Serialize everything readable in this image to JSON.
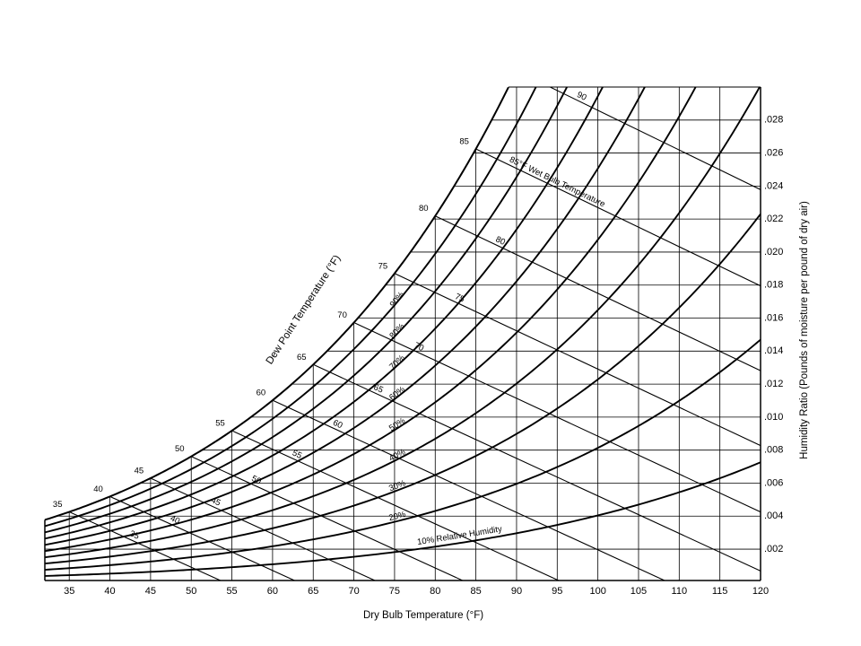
{
  "chart_data": {
    "type": "line",
    "title": "",
    "xlabel": "Dry Bulb Temperature (°F)",
    "ylabel": "Humidity Ratio (Pounds of moisture per pound of dry air)",
    "dew_point_label": "Dew Point Temperature (°F)",
    "wet_bulb_label": "85°F Wet Bulb Temperature",
    "rh_label": "10% Relative Humidity",
    "xlim": [
      32,
      120
    ],
    "ylim": [
      0,
      0.03
    ],
    "x_ticks": [
      35,
      40,
      45,
      50,
      55,
      60,
      65,
      70,
      75,
      80,
      85,
      90,
      95,
      100,
      105,
      110,
      115,
      120
    ],
    "x_tick_labels": [
      "35",
      "40",
      "45",
      "50",
      "55",
      "60",
      "65",
      "70",
      "75",
      "80",
      "85",
      "90",
      "95",
      "100",
      "105",
      "110",
      "115",
      "120"
    ],
    "y_ticks": [
      0.002,
      0.004,
      0.006,
      0.008,
      0.01,
      0.012,
      0.014,
      0.016,
      0.018,
      0.02,
      0.022,
      0.024,
      0.026,
      0.028
    ],
    "y_tick_labels": [
      ".002",
      ".004",
      ".006",
      ".008",
      ".010",
      ".012",
      ".014",
      ".016",
      ".018",
      ".020",
      ".022",
      ".024",
      ".026",
      ".028"
    ],
    "grid": true,
    "saturation_labels": [
      "35",
      "40",
      "45",
      "50",
      "55",
      "60",
      "65",
      "70",
      "75",
      "80",
      "85"
    ],
    "saturation_temps": [
      35,
      40,
      45,
      50,
      55,
      60,
      65,
      70,
      75,
      80,
      85
    ],
    "relative_humidity": {
      "levels": [
        10,
        20,
        30,
        40,
        50,
        60,
        70,
        80,
        90
      ],
      "labels": [
        "10%",
        "20%",
        "30%",
        "40%",
        "50%",
        "60%",
        "70%",
        "80%",
        "90%"
      ]
    },
    "wet_bulb": {
      "temps": [
        35,
        40,
        45,
        50,
        55,
        60,
        65,
        70,
        75,
        80,
        85,
        90
      ],
      "labels": [
        "35",
        "40",
        "45",
        "50",
        "55",
        "60",
        "65",
        "70",
        "75",
        "80",
        "85",
        "90"
      ]
    }
  }
}
